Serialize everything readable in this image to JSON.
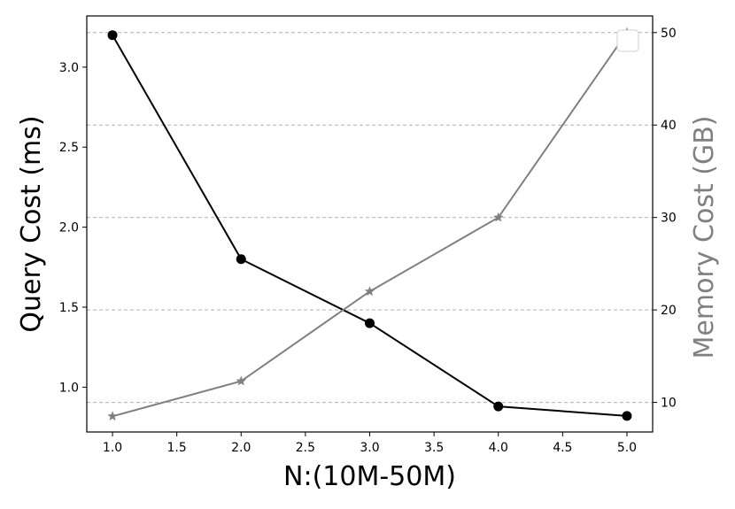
{
  "chart_data": {
    "type": "line",
    "xlabel": "N:(10M-50M)",
    "ylabel_left": "Query Cost (ms)",
    "ylabel_right": "Memory Cost (GB)",
    "x": [
      1.0,
      2.0,
      3.0,
      4.0,
      5.0
    ],
    "xlim": [
      0.8,
      5.2
    ],
    "ylim_left": [
      0.72,
      3.32
    ],
    "ylim_right": [
      6.8,
      51.8
    ],
    "grid": "horizontal dashed, aligned to right axis ticks",
    "series": [
      {
        "axis": "left",
        "values": [
          3.2,
          1.8,
          1.4,
          0.88,
          0.82
        ],
        "color": "#000000",
        "marker": "circle"
      },
      {
        "axis": "right",
        "values": [
          8.5,
          12.3,
          22.0,
          30.0,
          50.0
        ],
        "color": "#808080",
        "marker": "star"
      }
    ],
    "x_ticks": [
      "1.0",
      "1.5",
      "2.0",
      "2.5",
      "3.0",
      "3.5",
      "4.0",
      "4.5",
      "5.0"
    ],
    "y_left_ticks": [
      "1.0",
      "1.5",
      "2.0",
      "2.5",
      "3.0"
    ],
    "y_right_ticks": [
      "10",
      "20",
      "30",
      "40",
      "50"
    ],
    "colors": {
      "left_axis": "#000000",
      "right_axis": "#808080",
      "grid": "#b0b0b0"
    }
  }
}
